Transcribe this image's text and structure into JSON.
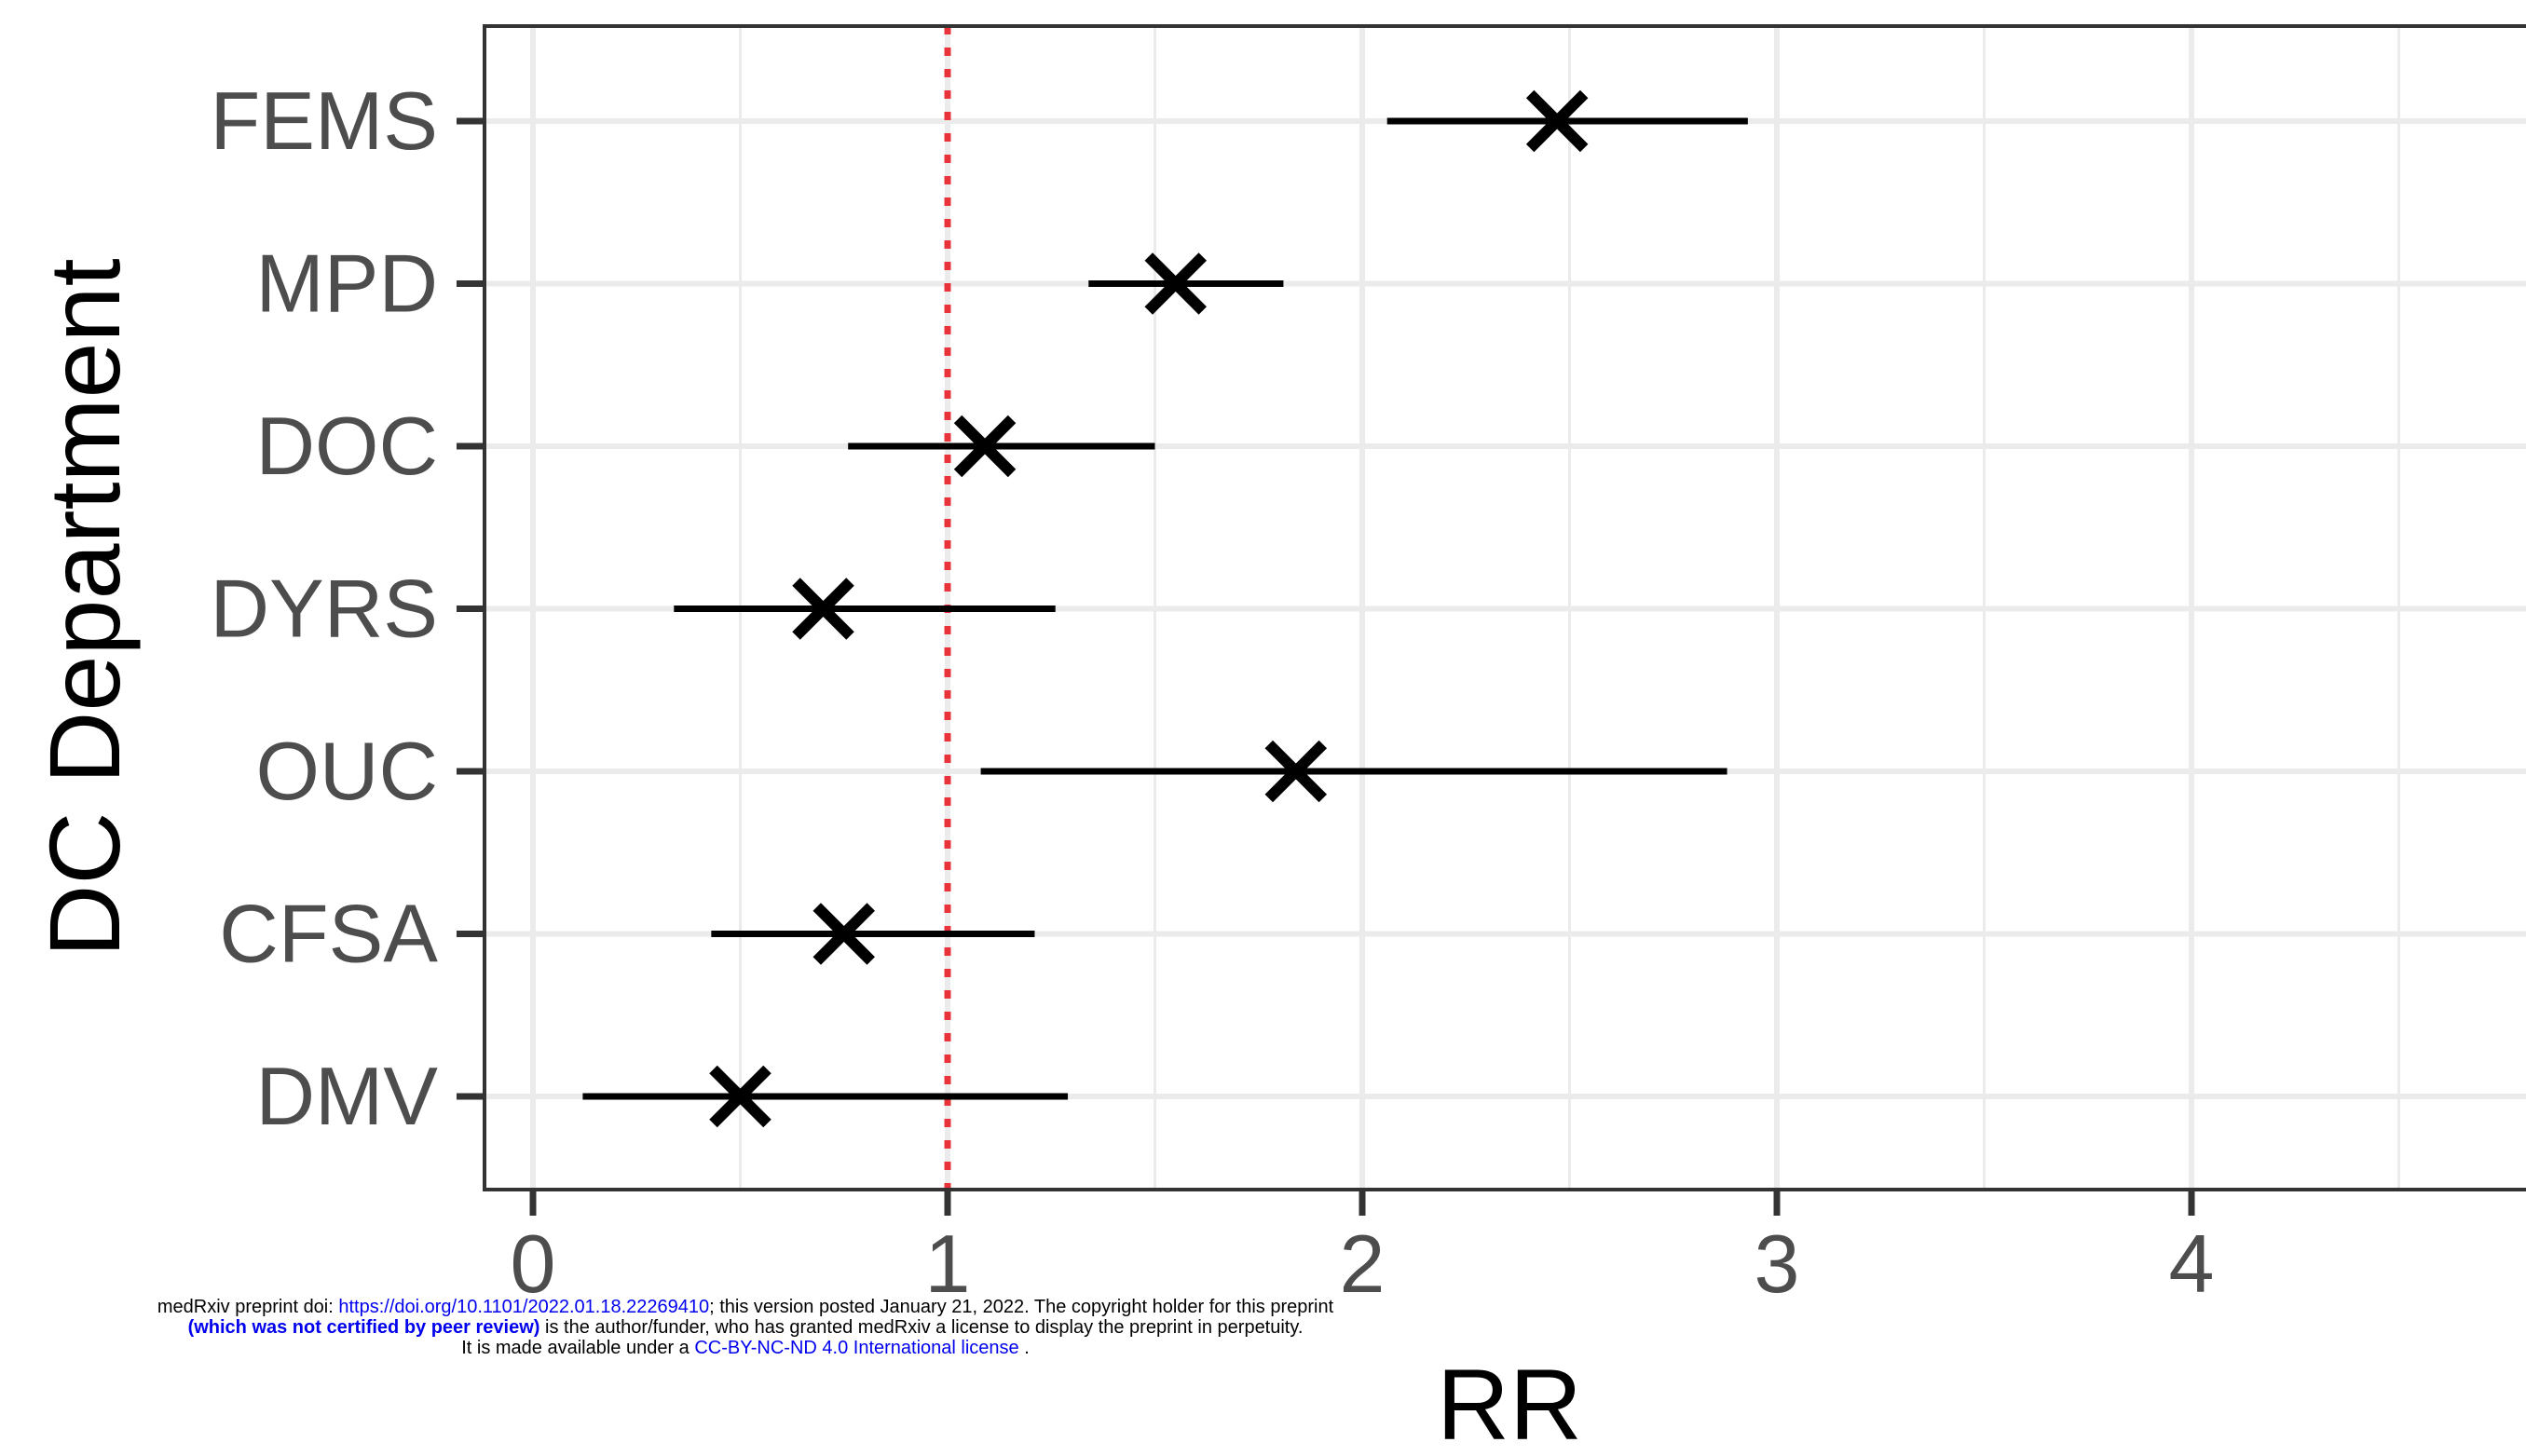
{
  "chart_data": {
    "type": "scatter",
    "subtype": "forest-plot",
    "xlabel": "RR",
    "ylabel": "DC Department",
    "xlim": [
      -0.12,
      4.85
    ],
    "xticks": [
      0,
      1,
      2,
      3,
      4
    ],
    "reference_line": {
      "x": 1,
      "color": "#e8333a",
      "style": "dotted"
    },
    "grid": true,
    "marker": "x",
    "categories": [
      "FEMS",
      "MPD",
      "DOC",
      "DYRS",
      "OUC",
      "CFSA",
      "DMV"
    ],
    "series": [
      {
        "points": [
          {
            "label": "FEMS",
            "rr": 2.47,
            "lower": 2.06,
            "upper": 2.93
          },
          {
            "label": "MPD",
            "rr": 1.55,
            "lower": 1.34,
            "upper": 1.81
          },
          {
            "label": "DOC",
            "rr": 1.09,
            "lower": 0.76,
            "upper": 1.5
          },
          {
            "label": "DYRS",
            "rr": 0.7,
            "lower": 0.34,
            "upper": 1.26
          },
          {
            "label": "OUC",
            "rr": 1.84,
            "lower": 1.08,
            "upper": 2.88
          },
          {
            "label": "CFSA",
            "rr": 0.75,
            "lower": 0.43,
            "upper": 1.21
          },
          {
            "label": "DMV",
            "rr": 0.5,
            "lower": 0.12,
            "upper": 1.29
          }
        ]
      }
    ],
    "colors": {
      "marks": "#000000",
      "reference": "#e8333a",
      "grid": "#ebebeb",
      "text": "#4d4d4d"
    }
  },
  "notice": {
    "line1_pre": "medRxiv preprint doi: ",
    "line1_link": "https://doi.org/10.1101/2022.01.18.22269410",
    "line1_post": "; this version posted January 21, 2022. The copyright holder for this preprint",
    "line2_bold": "(which was not certified by peer review)",
    "line2_post": " is the author/funder, who has granted medRxiv a license to display the preprint in perpetuity.",
    "line3_pre": "It is made available under a ",
    "line3_link": "CC-BY-NC-ND 4.0 International license",
    "line3_post": " ."
  }
}
